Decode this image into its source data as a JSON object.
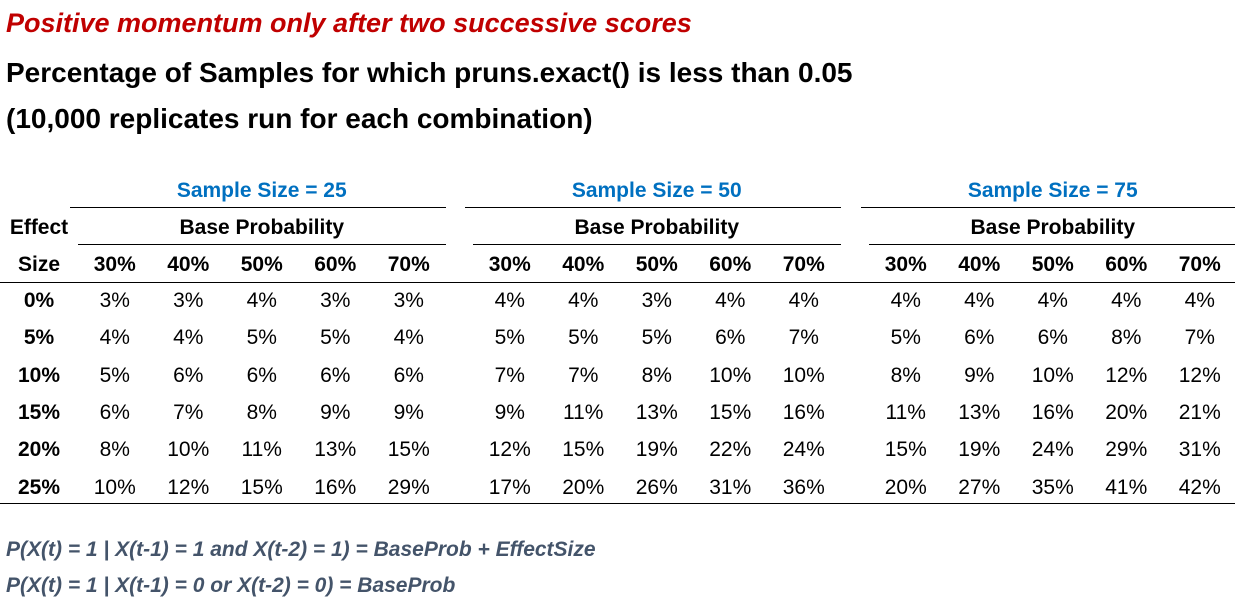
{
  "heading": {
    "subtitle": "Positive momentum only after two successive scores",
    "title_line1": "Percentage of Samples for which pruns.exact() is less than 0.05",
    "title_line2": "(10,000 replicates run for each combination)"
  },
  "colors": {
    "subtitle": "#c00000",
    "group_header": "#0070c0",
    "formula": "#44546a"
  },
  "table": {
    "row_header_top": "Effect",
    "row_header_bottom": "Size",
    "base_probability_label": "Base Probability",
    "groups": [
      {
        "label": "Sample Size = 25",
        "columns": [
          "30%",
          "40%",
          "50%",
          "60%",
          "70%"
        ],
        "rows": [
          [
            "3%",
            "3%",
            "4%",
            "3%",
            "3%"
          ],
          [
            "4%",
            "4%",
            "5%",
            "5%",
            "4%"
          ],
          [
            "5%",
            "6%",
            "6%",
            "6%",
            "6%"
          ],
          [
            "6%",
            "7%",
            "8%",
            "9%",
            "9%"
          ],
          [
            "8%",
            "10%",
            "11%",
            "13%",
            "15%"
          ],
          [
            "10%",
            "12%",
            "15%",
            "16%",
            "29%"
          ]
        ]
      },
      {
        "label": "Sample Size = 50",
        "columns": [
          "30%",
          "40%",
          "50%",
          "60%",
          "70%"
        ],
        "rows": [
          [
            "4%",
            "4%",
            "3%",
            "4%",
            "4%"
          ],
          [
            "5%",
            "5%",
            "5%",
            "6%",
            "7%"
          ],
          [
            "7%",
            "7%",
            "8%",
            "10%",
            "10%"
          ],
          [
            "9%",
            "11%",
            "13%",
            "15%",
            "16%"
          ],
          [
            "12%",
            "15%",
            "19%",
            "22%",
            "24%"
          ],
          [
            "17%",
            "20%",
            "26%",
            "31%",
            "36%"
          ]
        ]
      },
      {
        "label": "Sample Size = 75",
        "columns": [
          "30%",
          "40%",
          "50%",
          "60%",
          "70%"
        ],
        "rows": [
          [
            "4%",
            "4%",
            "4%",
            "4%",
            "4%"
          ],
          [
            "5%",
            "6%",
            "6%",
            "8%",
            "7%"
          ],
          [
            "8%",
            "9%",
            "10%",
            "12%",
            "12%"
          ],
          [
            "11%",
            "13%",
            "16%",
            "20%",
            "21%"
          ],
          [
            "15%",
            "19%",
            "24%",
            "29%",
            "31%"
          ],
          [
            "20%",
            "27%",
            "35%",
            "41%",
            "42%"
          ]
        ]
      }
    ],
    "effect_sizes": [
      "0%",
      "5%",
      "10%",
      "15%",
      "20%",
      "25%"
    ]
  },
  "formulas": {
    "line1": "P(X(t) = 1 | X(t-1) = 1 and X(t-2) = 1) = BaseProb + EffectSize",
    "line2": "P(X(t) = 1 | X(t-1) = 0 or X(t-2) = 0) = BaseProb"
  }
}
